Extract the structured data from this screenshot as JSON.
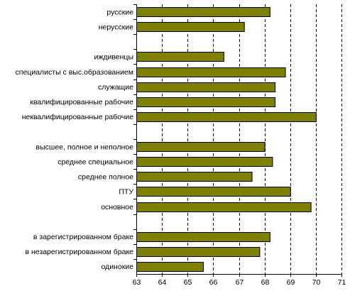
{
  "chart_data": {
    "type": "bar",
    "orientation": "horizontal",
    "title": "",
    "xlabel": "",
    "ylabel": "",
    "xlim": [
      63,
      71
    ],
    "x_ticks": [
      "63",
      "64",
      "65",
      "66",
      "67",
      "68",
      "69",
      "70",
      "71"
    ],
    "grid": "vertical dashed",
    "bar_color": "#808000",
    "categories": [
      {
        "label": "русские",
        "value": 68.2
      },
      {
        "label": "нерусские",
        "value": 67.2
      },
      {
        "label": "",
        "value": null
      },
      {
        "label": "иждивенцы",
        "value": 66.4
      },
      {
        "label": "специалисты с выс.образованием",
        "value": 68.8
      },
      {
        "label": "служащие",
        "value": 68.4
      },
      {
        "label": "квалифицированные рабочие",
        "value": 68.4
      },
      {
        "label": "неквалифицированные рабочие",
        "value": 70.0
      },
      {
        "label": "",
        "value": null
      },
      {
        "label": "высшее, полное и неполное",
        "value": 68.0
      },
      {
        "label": "среднее специальное",
        "value": 68.3
      },
      {
        "label": "среднее полное",
        "value": 67.5
      },
      {
        "label": "ПТУ",
        "value": 69.0
      },
      {
        "label": "основное",
        "value": 69.8
      },
      {
        "label": "",
        "value": null
      },
      {
        "label": "в зарегистрированном браке",
        "value": 68.2
      },
      {
        "label": "в незарегистрированном браке",
        "value": 67.8
      },
      {
        "label": "одинокие",
        "value": 65.6
      }
    ]
  }
}
